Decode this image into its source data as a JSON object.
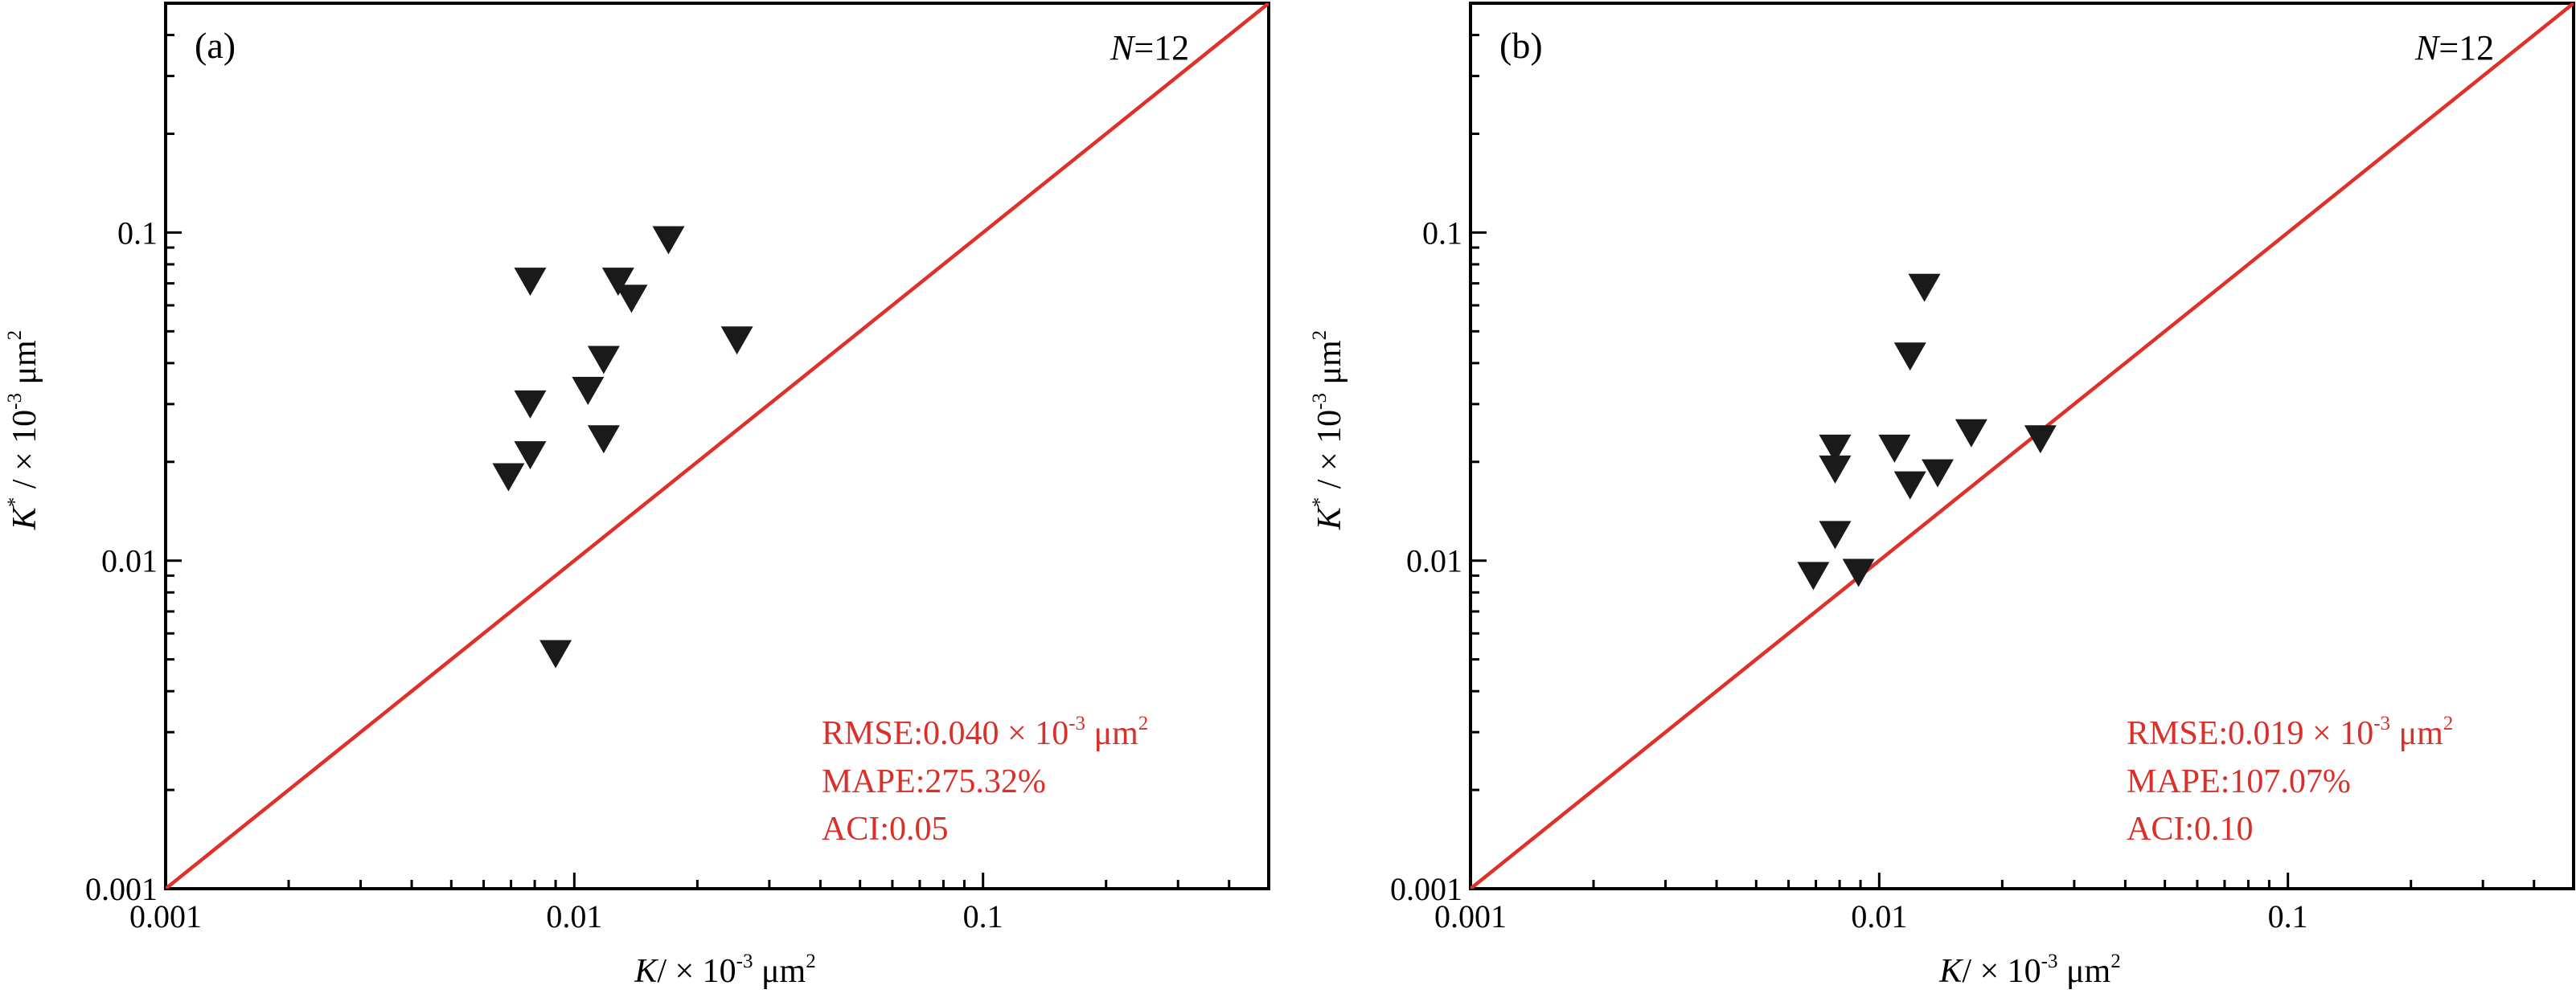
{
  "figure": {
    "panels": [
      {
        "label": "(a)",
        "n_label": {
          "italic": "N",
          "rest": "=12"
        }
      },
      {
        "label": "(b)",
        "n_label": {
          "italic": "N",
          "rest": "=12"
        }
      }
    ]
  },
  "chart_data": [
    {
      "type": "scatter",
      "panel": "(a)",
      "xscale": "log",
      "yscale": "log",
      "xlim": [
        0.001,
        0.5
      ],
      "ylim": [
        0.001,
        0.5
      ],
      "xticks": [
        {
          "value": 0.001,
          "label": "0.001"
        },
        {
          "value": 0.01,
          "label": "0.01"
        },
        {
          "value": 0.1,
          "label": "0.1"
        }
      ],
      "yticks": [
        {
          "value": 0.001,
          "label": "0.001"
        },
        {
          "value": 0.01,
          "label": "0.01"
        },
        {
          "value": 0.1,
          "label": "0.1"
        }
      ],
      "xlabel": {
        "symbol": "K",
        "rest": "/ × 10",
        "exp": "-3",
        "unit": " μm",
        "unit_exp": "2"
      },
      "ylabel": {
        "symbol": "K",
        "symbol_sup": "*",
        "rest": " / × 10",
        "exp": "-3",
        "unit": " μm",
        "unit_exp": "2"
      },
      "marker": "triangle-down",
      "marker_color": "#1a1a1a",
      "reference_line": {
        "type": "y=x",
        "color": "#e0302a"
      },
      "points": [
        {
          "x": 0.0069,
          "y": 0.018
        },
        {
          "x": 0.0078,
          "y": 0.071
        },
        {
          "x": 0.0078,
          "y": 0.03
        },
        {
          "x": 0.0078,
          "y": 0.021
        },
        {
          "x": 0.009,
          "y": 0.0052
        },
        {
          "x": 0.0108,
          "y": 0.033
        },
        {
          "x": 0.0118,
          "y": 0.041
        },
        {
          "x": 0.0118,
          "y": 0.0235
        },
        {
          "x": 0.0128,
          "y": 0.071
        },
        {
          "x": 0.0138,
          "y": 0.063
        },
        {
          "x": 0.017,
          "y": 0.095
        },
        {
          "x": 0.025,
          "y": 0.047
        }
      ],
      "annotation": {
        "color": "#d9302a",
        "rmse": {
          "text": "RMSE:0.040 × 10",
          "exp": "-3",
          "unit": " μm",
          "unit_exp": "2"
        },
        "mape": "MAPE:275.32%",
        "aci": "ACI:0.05"
      }
    },
    {
      "type": "scatter",
      "panel": "(b)",
      "xscale": "log",
      "yscale": "log",
      "xlim": [
        0.001,
        0.5
      ],
      "ylim": [
        0.001,
        0.5
      ],
      "xticks": [
        {
          "value": 0.001,
          "label": "0.001"
        },
        {
          "value": 0.01,
          "label": "0.01"
        },
        {
          "value": 0.1,
          "label": "0.1"
        }
      ],
      "yticks": [
        {
          "value": 0.001,
          "label": "0.001"
        },
        {
          "value": 0.01,
          "label": "0.01"
        },
        {
          "value": 0.1,
          "label": "0.1"
        }
      ],
      "xlabel": {
        "symbol": "K",
        "rest": "/ × 10",
        "exp": "-3",
        "unit": " μm",
        "unit_exp": "2"
      },
      "ylabel": {
        "symbol": "K",
        "symbol_sup": "*",
        "rest": " / × 10",
        "exp": "-3",
        "unit": " μm",
        "unit_exp": "2"
      },
      "marker": "triangle-down",
      "marker_color": "#1a1a1a",
      "reference_line": {
        "type": "y=x",
        "color": "#e0302a"
      },
      "points": [
        {
          "x": 0.0069,
          "y": 0.009
        },
        {
          "x": 0.0078,
          "y": 0.022
        },
        {
          "x": 0.0078,
          "y": 0.019
        },
        {
          "x": 0.0078,
          "y": 0.012
        },
        {
          "x": 0.0089,
          "y": 0.0092
        },
        {
          "x": 0.0109,
          "y": 0.022
        },
        {
          "x": 0.0119,
          "y": 0.042
        },
        {
          "x": 0.0119,
          "y": 0.017
        },
        {
          "x": 0.0129,
          "y": 0.068
        },
        {
          "x": 0.0139,
          "y": 0.0185
        },
        {
          "x": 0.0168,
          "y": 0.0245
        },
        {
          "x": 0.0248,
          "y": 0.0235
        }
      ],
      "annotation": {
        "color": "#d9302a",
        "rmse": {
          "text": "RMSE:0.019 × 10",
          "exp": "-3",
          "unit": " μm",
          "unit_exp": "2"
        },
        "mape": "MAPE:107.07%",
        "aci": "ACI:0.10"
      }
    }
  ]
}
